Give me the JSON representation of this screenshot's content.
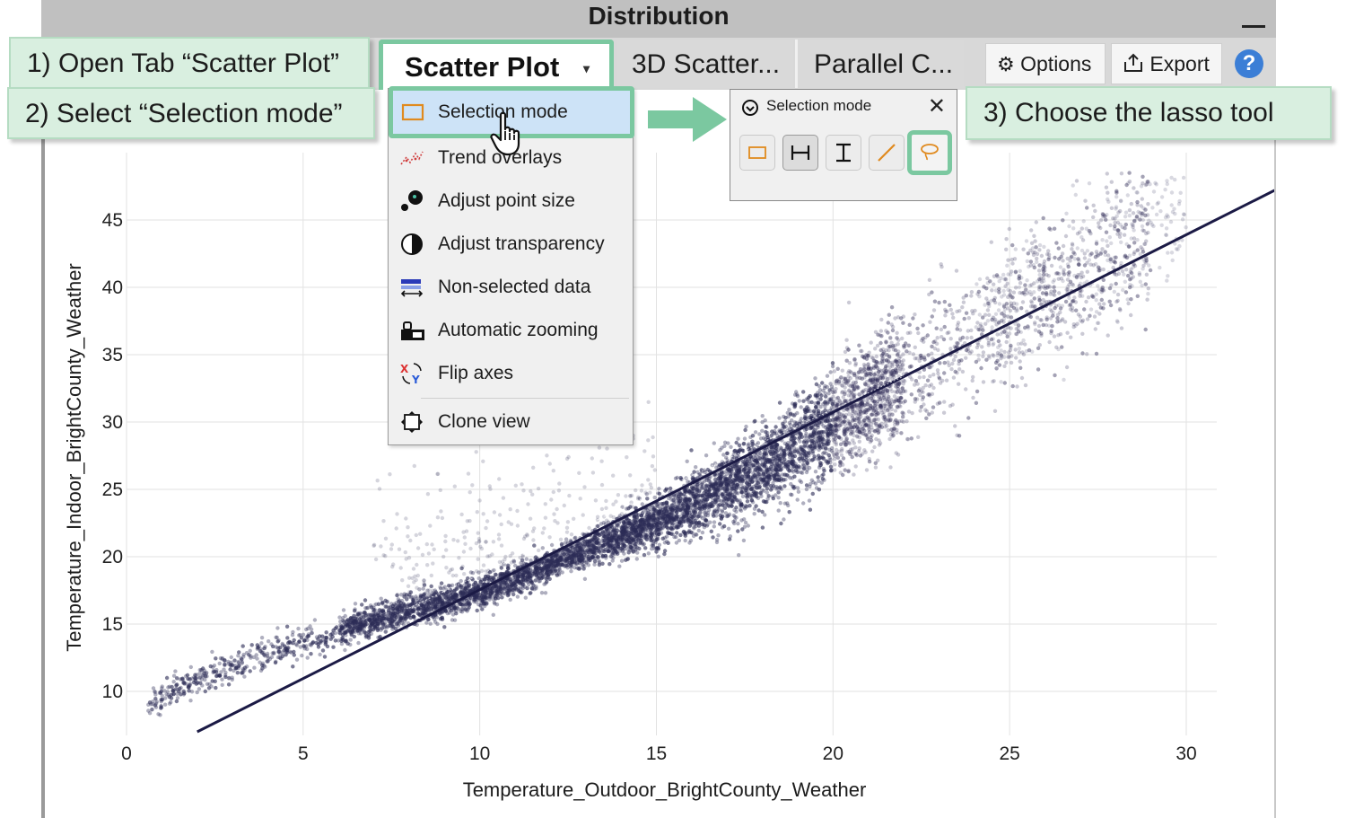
{
  "window": {
    "title": "Distribution",
    "minimize_label": "_"
  },
  "tabs": [
    {
      "label": "Scatter Plot",
      "active": true,
      "caret": "▾"
    },
    {
      "label": "3D Scatter..."
    },
    {
      "label": "Parallel C..."
    }
  ],
  "toolbar": {
    "options_label": "Options",
    "options_icon": "gear-icon",
    "export_label": "Export",
    "export_icon": "export-icon",
    "help_label": "?",
    "help_icon": "help-icon"
  },
  "callouts": {
    "step1": "1) Open Tab “Scatter Plot”",
    "step2": "2) Select “Selection mode”",
    "step3": "3) Choose the lasso tool"
  },
  "menu": {
    "items": [
      {
        "label": "Selection mode",
        "icon": "rectangle-select-icon",
        "highlighted": true
      },
      {
        "label": "Trend overlays",
        "icon": "trend-overlay-icon"
      },
      {
        "label": "Adjust point size",
        "icon": "point-size-icon"
      },
      {
        "label": "Adjust transparency",
        "icon": "transparency-icon"
      },
      {
        "label": "Non-selected data",
        "icon": "non-selected-data-icon"
      },
      {
        "label": "Automatic zooming",
        "icon": "auto-zoom-icon"
      },
      {
        "label": "Flip axes",
        "icon": "flip-axes-icon"
      },
      {
        "label": "Clone view",
        "icon": "clone-view-icon"
      }
    ]
  },
  "selection_popup": {
    "title": "Selection mode",
    "close_label": "✕",
    "tools": [
      {
        "name": "rectangle-select-icon"
      },
      {
        "name": "horizontal-select-icon",
        "pressed": true
      },
      {
        "name": "vertical-select-icon"
      },
      {
        "name": "line-select-icon"
      },
      {
        "name": "lasso-select-icon",
        "highlighted": true
      }
    ]
  },
  "colors": {
    "accent_green": "#7bc8a0",
    "callout_bg": "#d9efe0",
    "point_color": "#2e2d57",
    "trend_line": "#1b1a45",
    "help_blue": "#3b7ed6",
    "menu_highlight": "#cde3f7"
  },
  "chart_data": {
    "type": "scatter",
    "title": "",
    "xlabel": "Temperature_Outdoor_BrightCounty_Weather",
    "ylabel": "Temperature_Indoor_BrightCounty_Weather",
    "xlim": [
      0,
      32.5
    ],
    "ylim": [
      7,
      49
    ],
    "x_ticks": [
      0,
      5,
      10,
      15,
      20,
      25,
      30
    ],
    "y_ticks": [
      10,
      15,
      20,
      25,
      30,
      35,
      40,
      45
    ],
    "grid": true,
    "series": [
      {
        "x": [
          0.8,
          1.5,
          2.5,
          3.5,
          4.5,
          5.5,
          6.5,
          7.5,
          8.5,
          9.5,
          10.5,
          11.5,
          12.5,
          13.5,
          14.5,
          15.5,
          16.5,
          17.5,
          18.5,
          19.5,
          20.5,
          21.5,
          22.5,
          23.5,
          24.5,
          25.5,
          26.5,
          27.5,
          28.5,
          29.5,
          30.5
        ],
        "y": [
          9.2,
          10.3,
          11.3,
          12.3,
          13.2,
          14.0,
          14.9,
          15.7,
          16.3,
          17.0,
          17.8,
          18.8,
          19.9,
          21.0,
          22.1,
          23.2,
          24.5,
          25.9,
          27.3,
          29.0,
          30.7,
          32.4,
          34.0,
          35.8,
          37.5,
          39.0,
          40.6,
          42.0,
          43.3,
          45.0,
          46.8
        ]
      }
    ],
    "trend_line": {
      "x": [
        2,
        32.5
      ],
      "y": [
        7,
        47.2
      ]
    }
  }
}
